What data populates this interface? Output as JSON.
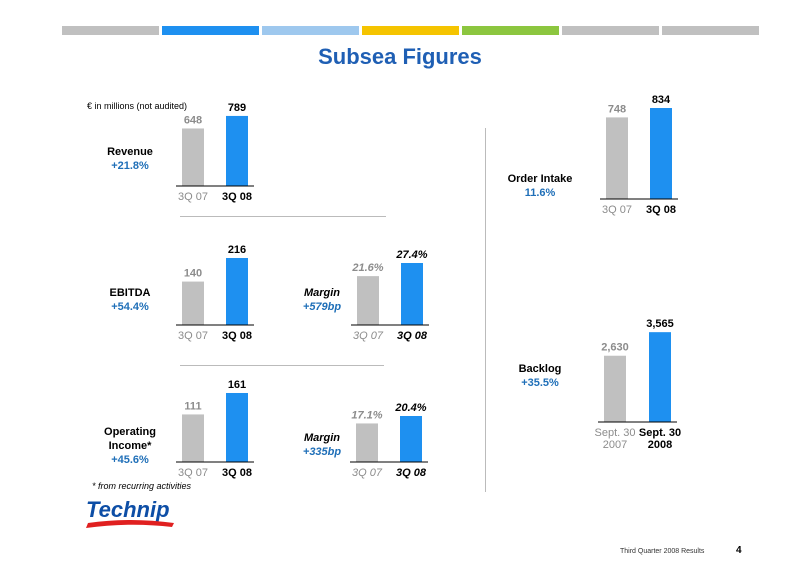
{
  "page": {
    "title": "Subsea Figures",
    "note": "€ in millions (not audited)",
    "footnote": "* from recurring activities",
    "footer": "Third Quarter 2008 Results",
    "page_number": "4",
    "logo_text": "Technip",
    "top_bar_colors": [
      "#c0c0c0",
      "#1e90f0",
      "#9ec8ee",
      "#f5c400",
      "#8cc63f",
      "#c0c0c0",
      "#c0c0c0"
    ]
  },
  "colors": {
    "previous": "#c0c0c0",
    "current": "#1e90f0",
    "blue_text": "#1f6fb8"
  },
  "labels": {
    "revenue": {
      "title": "Revenue",
      "change": "+21.8%"
    },
    "ebitda": {
      "title": "EBITDA",
      "change": "+54.4%"
    },
    "ebitda_margin": {
      "title": "Margin",
      "change": "+579bp"
    },
    "op_income": {
      "title_line1": "Operating",
      "title_line2": "Income*",
      "change": "+45.6%"
    },
    "op_margin": {
      "title": "Margin",
      "change": "+335bp"
    },
    "order_intake": {
      "title": "Order Intake",
      "change": "11.6%"
    },
    "backlog": {
      "title": "Backlog",
      "change": "+35.5%"
    }
  },
  "chart_data": [
    {
      "id": "revenue",
      "type": "bar",
      "categories": [
        "3Q 07",
        "3Q 08"
      ],
      "values": [
        648,
        789
      ],
      "value_labels": [
        "648",
        "789"
      ]
    },
    {
      "id": "ebitda",
      "type": "bar",
      "categories": [
        "3Q 07",
        "3Q 08"
      ],
      "values": [
        140,
        216
      ],
      "value_labels": [
        "140",
        "216"
      ]
    },
    {
      "id": "ebitda_margin",
      "type": "bar",
      "categories": [
        "3Q 07",
        "3Q 08"
      ],
      "values": [
        21.6,
        27.4
      ],
      "value_labels": [
        "21.6%",
        "27.4%"
      ]
    },
    {
      "id": "op_income",
      "type": "bar",
      "categories": [
        "3Q 07",
        "3Q 08"
      ],
      "values": [
        111,
        161
      ],
      "value_labels": [
        "111",
        "161"
      ]
    },
    {
      "id": "op_margin",
      "type": "bar",
      "categories": [
        "3Q 07",
        "3Q 08"
      ],
      "values": [
        17.1,
        20.4
      ],
      "value_labels": [
        "17.1%",
        "20.4%"
      ]
    },
    {
      "id": "order_intake",
      "type": "bar",
      "categories": [
        "3Q 07",
        "3Q 08"
      ],
      "values": [
        748,
        834
      ],
      "value_labels": [
        "748",
        "834"
      ]
    },
    {
      "id": "backlog",
      "type": "bar",
      "categories": [
        "Sept. 30\n2007",
        "Sept. 30\n2008"
      ],
      "values": [
        2630,
        3565
      ],
      "value_labels": [
        "2,630",
        "3,565"
      ]
    }
  ]
}
